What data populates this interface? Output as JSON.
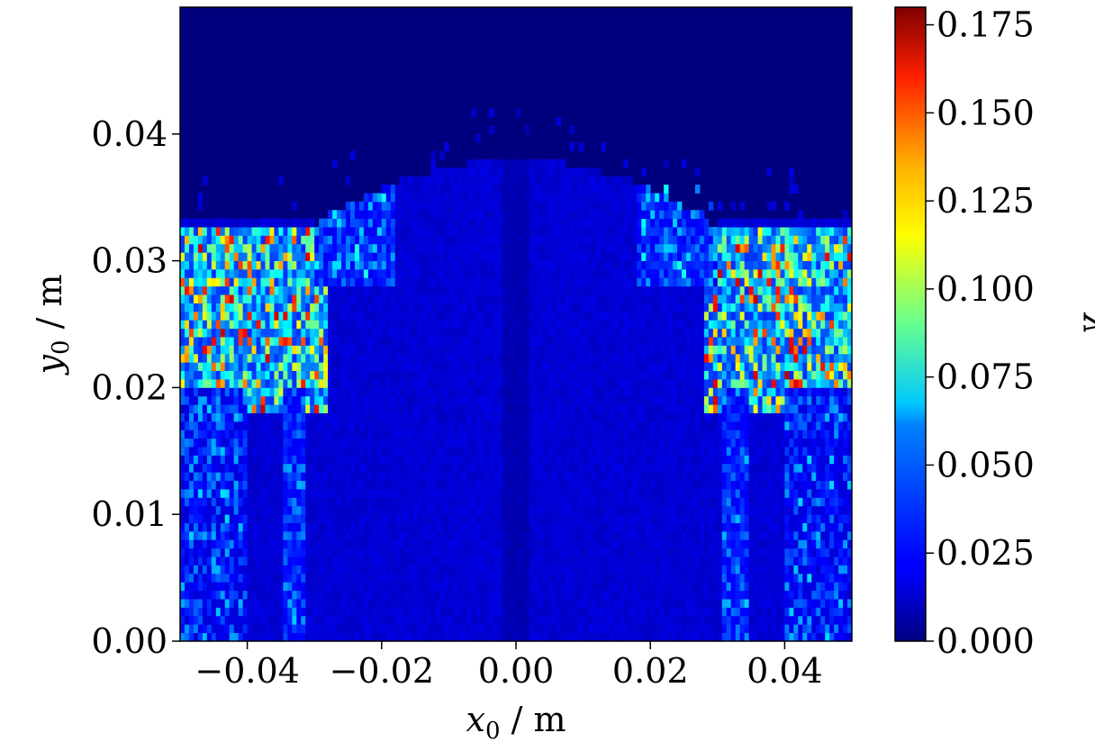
{
  "chart_data": {
    "type": "heatmap",
    "title": "",
    "xlabel": {
      "symbol": "x",
      "subscript": "0",
      "unit": " / m"
    },
    "ylabel": {
      "symbol": "y",
      "subscript": "0",
      "unit": " / m"
    },
    "xlim": [
      -0.05,
      0.05
    ],
    "ylim": [
      0.0,
      0.05
    ],
    "x_ticks": [
      {
        "value": -0.04,
        "label": "−0.04"
      },
      {
        "value": -0.02,
        "label": "−0.02"
      },
      {
        "value": 0.0,
        "label": "0.00"
      },
      {
        "value": 0.02,
        "label": "0.02"
      },
      {
        "value": 0.04,
        "label": "0.04"
      }
    ],
    "y_ticks": [
      {
        "value": 0.0,
        "label": "0.00"
      },
      {
        "value": 0.01,
        "label": "0.01"
      },
      {
        "value": 0.02,
        "label": "0.02"
      },
      {
        "value": 0.03,
        "label": "0.03"
      },
      {
        "value": 0.04,
        "label": "0.04"
      }
    ],
    "colorbar": {
      "label": "λ",
      "colormap": "jet",
      "range": [
        0.0,
        0.18
      ],
      "ticks": [
        {
          "value": 0.0,
          "label": "0.000"
        },
        {
          "value": 0.025,
          "label": "0.025"
        },
        {
          "value": 0.05,
          "label": "0.050"
        },
        {
          "value": 0.075,
          "label": "0.075"
        },
        {
          "value": 0.1,
          "label": "0.100"
        },
        {
          "value": 0.125,
          "label": "0.125"
        },
        {
          "value": 0.15,
          "label": "0.150"
        },
        {
          "value": 0.175,
          "label": "0.175"
        }
      ]
    },
    "grid": false,
    "regions": [
      {
        "x_range": [
          -0.05,
          -0.028
        ],
        "y_range": [
          0.018,
          0.031
        ],
        "lambda_typical": 0.09
      },
      {
        "x_range": [
          0.028,
          0.05
        ],
        "y_range": [
          0.018,
          0.033
        ],
        "lambda_typical": 0.09
      },
      {
        "x_range": [
          -0.03,
          0.03
        ],
        "y_range": [
          0.02,
          0.038
        ],
        "lambda_typical": 0.02
      },
      {
        "x_range": [
          -0.05,
          0.05
        ],
        "y_range": [
          0.0,
          0.02
        ],
        "lambda_typical": 0.015
      },
      {
        "x_range": [
          -0.05,
          0.05
        ],
        "y_range": [
          0.038,
          0.05
        ],
        "lambda_typical": 0.0
      }
    ]
  }
}
